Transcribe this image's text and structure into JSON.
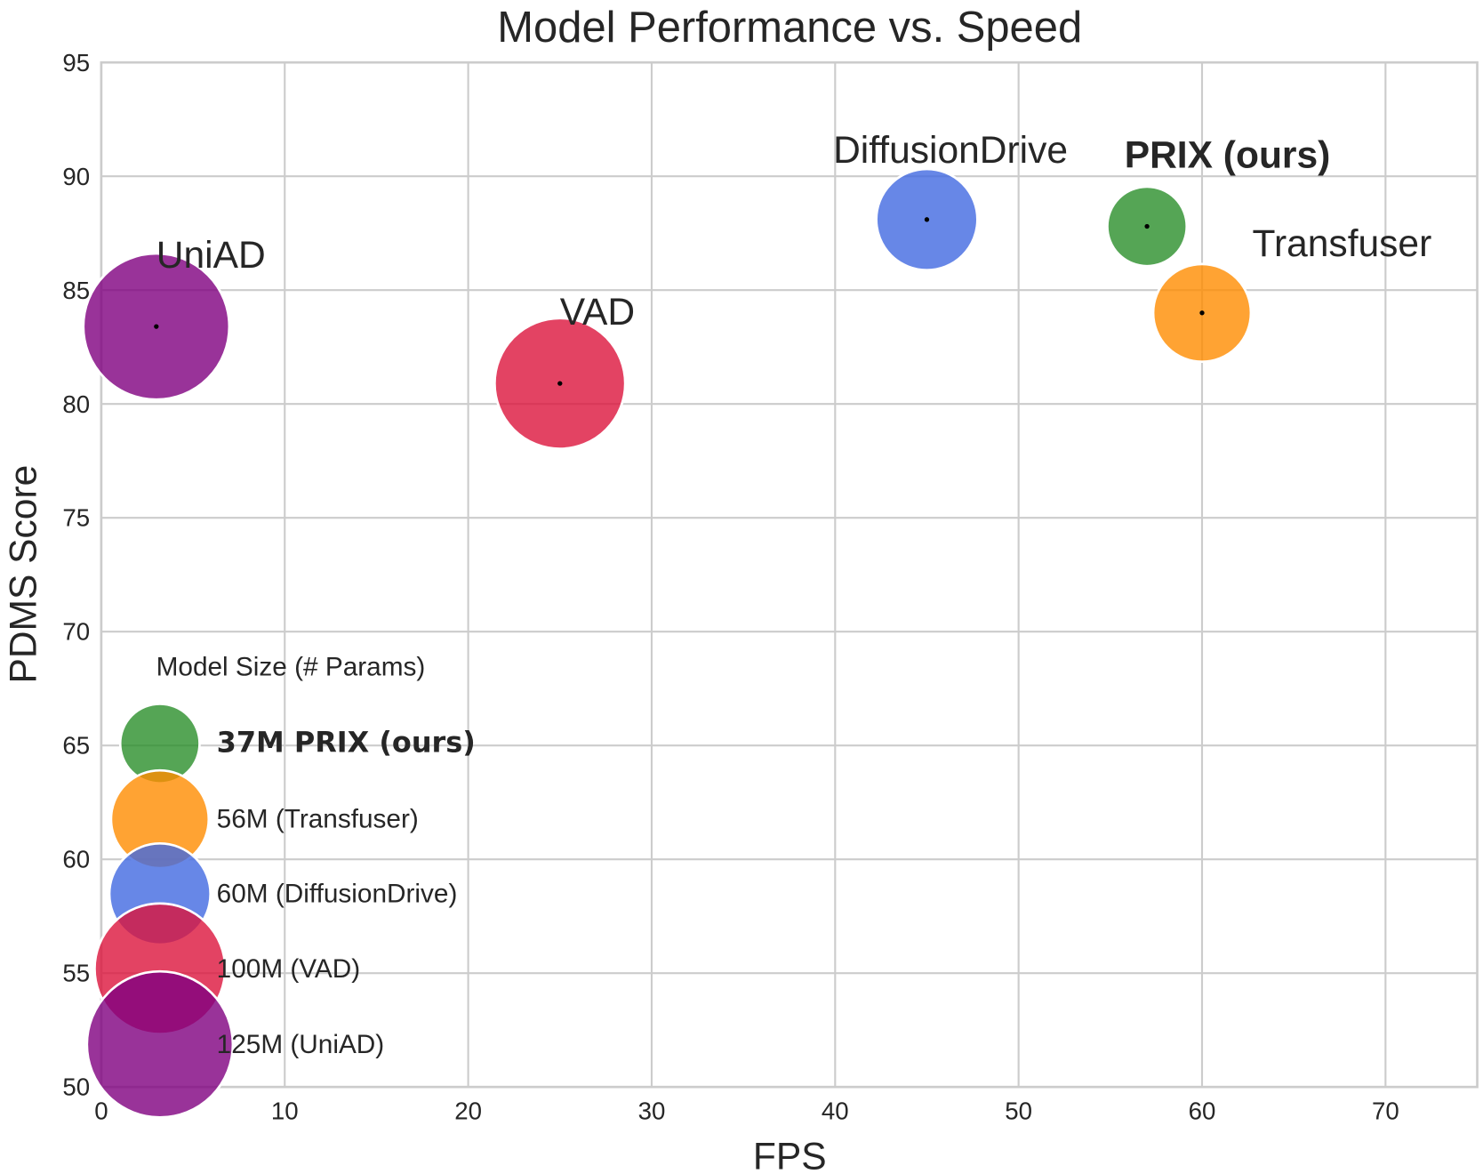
{
  "chart_data": {
    "type": "scatter",
    "title": "Model Performance vs. Speed",
    "xlabel": "FPS",
    "ylabel": "PDMS Score",
    "xlim": [
      0,
      75
    ],
    "ylim": [
      50,
      95
    ],
    "xticks": [
      0,
      10,
      20,
      30,
      40,
      50,
      60,
      70
    ],
    "yticks": [
      50,
      55,
      60,
      65,
      70,
      75,
      80,
      85,
      90,
      95
    ],
    "grid": true,
    "points": [
      {
        "label": "UniAD",
        "x": 3,
        "y": 83.4,
        "params_m": 125,
        "color": "#800080",
        "bold": false
      },
      {
        "label": "VAD",
        "x": 25,
        "y": 80.9,
        "params_m": 100,
        "color": "#dc143c",
        "bold": false
      },
      {
        "label": "DiffusionDrive",
        "x": 45,
        "y": 88.1,
        "params_m": 60,
        "color": "#4169e1",
        "bold": false
      },
      {
        "label": "PRIX (ours)",
        "x": 57,
        "y": 87.8,
        "params_m": 37,
        "color": "#2a8f2a",
        "bold": true
      },
      {
        "label": "Transfuser",
        "x": 60,
        "y": 84.0,
        "params_m": 56,
        "color": "#ff8c00",
        "bold": false
      }
    ],
    "legend": {
      "title": "Model Size (# Params)",
      "placement": "lower-left",
      "entries": [
        {
          "label": "37M PRIX (ours)",
          "params_m": 37,
          "color": "#2a8f2a",
          "bold": true
        },
        {
          "label": "56M (Transfuser)",
          "params_m": 56,
          "color": "#ff8c00",
          "bold": false
        },
        {
          "label": "60M (DiffusionDrive)",
          "params_m": 60,
          "color": "#4169e1",
          "bold": false
        },
        {
          "label": "100M (VAD)",
          "params_m": 100,
          "color": "#dc143c",
          "bold": false
        },
        {
          "label": "125M (UniAD)",
          "params_m": 125,
          "color": "#800080",
          "bold": false
        }
      ]
    }
  }
}
